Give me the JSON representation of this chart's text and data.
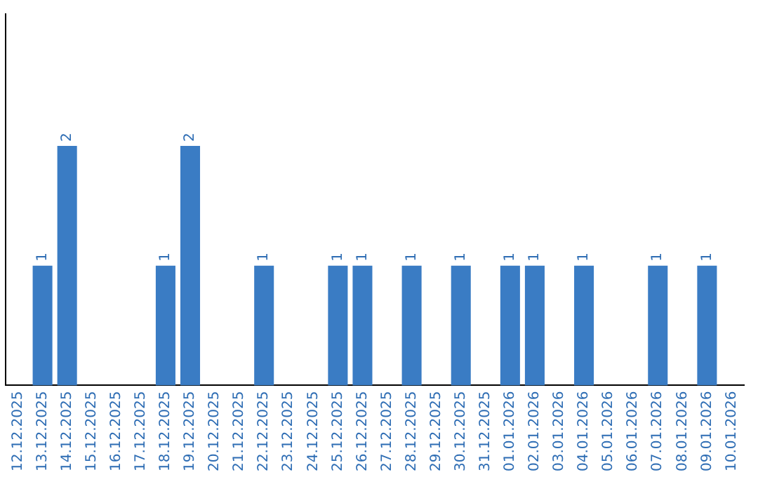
{
  "chart_data": {
    "type": "bar",
    "categories": [
      "12.12.2025",
      "13.12.2025",
      "14.12.2025",
      "15.12.2025",
      "16.12.2025",
      "17.12.2025",
      "18.12.2025",
      "19.12.2025",
      "20.12.2025",
      "21.12.2025",
      "22.12.2025",
      "23.12.2025",
      "24.12.2025",
      "25.12.2025",
      "26.12.2025",
      "27.12.2025",
      "28.12.2025",
      "29.12.2025",
      "30.12.2025",
      "31.12.2025",
      "01.01.2026",
      "02.01.2026",
      "03.01.2026",
      "04.01.2026",
      "05.01.2026",
      "06.01.2026",
      "07.01.2026",
      "08.01.2026",
      "09.01.2026",
      "10.01.2026"
    ],
    "values": [
      0,
      1,
      2,
      0,
      0,
      0,
      1,
      2,
      0,
      0,
      1,
      0,
      0,
      1,
      1,
      0,
      1,
      0,
      1,
      0,
      1,
      1,
      0,
      1,
      0,
      0,
      1,
      0,
      1,
      0
    ],
    "value_labels": [
      null,
      "1",
      "2",
      null,
      null,
      null,
      "1",
      "2",
      null,
      null,
      "1",
      null,
      null,
      "1",
      "1",
      null,
      "1",
      null,
      "1",
      null,
      "1",
      "1",
      null,
      "1",
      null,
      null,
      "1",
      null,
      "1",
      null
    ],
    "color": "#3a7cc4",
    "grid": false,
    "legend": false
  }
}
